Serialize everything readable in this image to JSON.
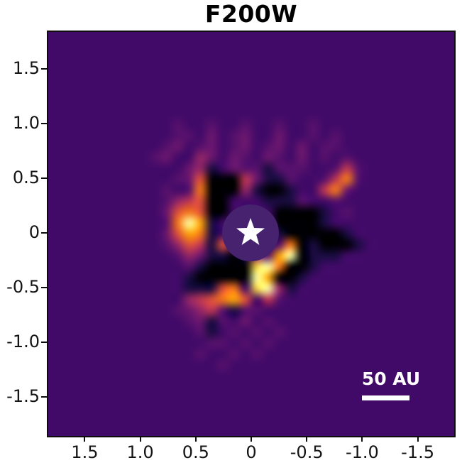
{
  "figure": {
    "title": "F200W"
  },
  "chart_data": {
    "type": "heatmap",
    "title": "F200W",
    "subtitle": "",
    "xlabel": "",
    "ylabel": "",
    "x_axis_reversed": true,
    "xlim": [
      1.83,
      -1.83
    ],
    "ylim": [
      -1.85,
      1.81
    ],
    "xticks": [
      1.5,
      1.0,
      0.5,
      0,
      -0.5,
      -1.0,
      -1.5
    ],
    "yticks": [
      1.5,
      1.0,
      0.5,
      0,
      -0.5,
      -1.0,
      -1.5
    ],
    "xtick_labels": [
      "1.5",
      "1.0",
      "0.5",
      "0",
      "-0.5",
      "-1.0",
      "-1.5"
    ],
    "ytick_labels": [
      "1.5",
      "1.0",
      "0.5",
      "0",
      "-0.5",
      "-1.0",
      "-1.5"
    ],
    "colormap": "inferno",
    "background_level_color": "#420a68",
    "mask_circle_color": "#46226f",
    "star": {
      "x": 0.0,
      "y": 0.0,
      "marker": "star",
      "color": "#ffffff"
    },
    "scale_bar": {
      "label": "50 AU",
      "color": "#ffffff"
    },
    "description": "Coronagraphic F200W image: central star masked (white star symbol on uniform purple circle), surrounded by a ring of black negative residuals and orange speckles, with a bright white-yellow disk arc curving from east through south-west; faint radial streaks in the outer field.",
    "palette": {
      "#": "#000004",
      "1": "#1b0c41",
      " ": "#420a68",
      ".": "#56116c",
      "-": "#6a176e",
      "+": "#932667",
      "5": "#bc3754",
      "6": "#dd513a",
      "7": "#f37819",
      "8": "#fca50a",
      "9": "#f6d746",
      "w": "#fcffa4"
    },
    "grid_rows": [
      "                                    ",
      "                                    ",
      "                                    ",
      "                                    ",
      "                                    ",
      "                                    ",
      "                                    ",
      "                                    ",
      "           .  .  .  .  .            ",
      "           .. - .-  -  . .          ",
      "          .- .- .- .- - ..          ",
      "         .-  +- -. -. - . .         ",
      "            -+1 -..1...  .5.        ",
      "           .-6###5-11.  .57.        ",
      "          . .7###+1##1  57-         ",
      "          .+56##   111.  .          ",
      "          -676##    ####1 .         ",
      "          .7w81     ####1           ",
      "          -6871     1#####1         ",
      "          .+6516    .7#1###1        ",
      "           .+-11#1+.8w#111          ",
      "            .1####9w7##1            ",
      "            1#####w8##1             ",
      "            11167 9w+1              ",
      "            +56786 5.               ",
      "           .-+5.1..                 ",
      "            .-1. - .                ",
      "             .1 . . .               ",
      "              .. . .                ",
      "             .  . .                 ",
      "               .                    ",
      "                                    ",
      "                                    ",
      "                                    ",
      "                                    ",
      "                                    ",
      "                                    "
    ]
  }
}
